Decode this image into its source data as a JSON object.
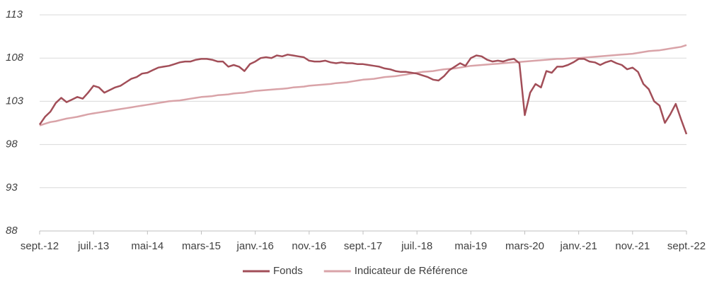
{
  "chart_data": {
    "type": "line",
    "x": [
      "2012-09",
      "2012-10",
      "2012-11",
      "2012-12",
      "2013-01",
      "2013-02",
      "2013-03",
      "2013-04",
      "2013-05",
      "2013-06",
      "2013-07",
      "2013-08",
      "2013-09",
      "2013-10",
      "2013-11",
      "2013-12",
      "2014-01",
      "2014-02",
      "2014-03",
      "2014-04",
      "2014-05",
      "2014-06",
      "2014-07",
      "2014-08",
      "2014-09",
      "2014-10",
      "2014-11",
      "2014-12",
      "2015-01",
      "2015-02",
      "2015-03",
      "2015-04",
      "2015-05",
      "2015-06",
      "2015-07",
      "2015-08",
      "2015-09",
      "2015-10",
      "2015-11",
      "2015-12",
      "2016-01",
      "2016-02",
      "2016-03",
      "2016-04",
      "2016-05",
      "2016-06",
      "2016-07",
      "2016-08",
      "2016-09",
      "2016-10",
      "2016-11",
      "2016-12",
      "2017-01",
      "2017-02",
      "2017-03",
      "2017-04",
      "2017-05",
      "2017-06",
      "2017-07",
      "2017-08",
      "2017-09",
      "2017-10",
      "2017-11",
      "2017-12",
      "2018-01",
      "2018-02",
      "2018-03",
      "2018-04",
      "2018-05",
      "2018-06",
      "2018-07",
      "2018-08",
      "2018-09",
      "2018-10",
      "2018-11",
      "2018-12",
      "2019-01",
      "2019-02",
      "2019-03",
      "2019-04",
      "2019-05",
      "2019-06",
      "2019-07",
      "2019-08",
      "2019-09",
      "2019-10",
      "2019-11",
      "2019-12",
      "2020-01",
      "2020-02",
      "2020-03",
      "2020-04",
      "2020-05",
      "2020-06",
      "2020-07",
      "2020-08",
      "2020-09",
      "2020-10",
      "2020-11",
      "2020-12",
      "2021-01",
      "2021-02",
      "2021-03",
      "2021-04",
      "2021-05",
      "2021-06",
      "2021-07",
      "2021-08",
      "2021-09",
      "2021-10",
      "2021-11",
      "2021-12",
      "2022-01",
      "2022-02",
      "2022-03",
      "2022-04",
      "2022-05",
      "2022-06",
      "2022-07",
      "2022-08",
      "2022-09"
    ],
    "series": [
      {
        "name": "Fonds",
        "color": "#a24e58",
        "values": [
          100.3,
          101.2,
          101.8,
          102.8,
          103.4,
          102.9,
          103.2,
          103.5,
          103.3,
          104.0,
          104.8,
          104.6,
          104.0,
          104.3,
          104.6,
          104.8,
          105.2,
          105.6,
          105.8,
          106.2,
          106.3,
          106.6,
          106.9,
          107.0,
          107.1,
          107.3,
          107.5,
          107.6,
          107.6,
          107.8,
          107.9,
          107.9,
          107.8,
          107.6,
          107.6,
          107.0,
          107.2,
          107.0,
          106.5,
          107.3,
          107.6,
          108.0,
          108.1,
          108.0,
          108.3,
          108.2,
          108.4,
          108.3,
          108.2,
          108.1,
          107.7,
          107.6,
          107.6,
          107.7,
          107.5,
          107.4,
          107.5,
          107.4,
          107.4,
          107.3,
          107.3,
          107.2,
          107.1,
          107.0,
          106.8,
          106.7,
          106.5,
          106.4,
          106.4,
          106.3,
          106.2,
          106.0,
          105.8,
          105.5,
          105.4,
          105.9,
          106.6,
          107.0,
          107.4,
          107.1,
          108.0,
          108.3,
          108.2,
          107.8,
          107.6,
          107.7,
          107.6,
          107.8,
          107.9,
          107.4,
          101.4,
          104.0,
          105.0,
          104.6,
          106.5,
          106.3,
          107.0,
          107.0,
          107.2,
          107.5,
          107.9,
          107.9,
          107.6,
          107.5,
          107.2,
          107.5,
          107.7,
          107.4,
          107.2,
          106.7,
          106.9,
          106.4,
          105.0,
          104.4,
          103.0,
          102.5,
          100.5,
          101.5,
          102.7,
          100.9,
          99.2
        ]
      },
      {
        "name": "Indicateur de Référence",
        "color": "#d9a3a8",
        "values": [
          100.2,
          100.4,
          100.6,
          100.7,
          100.85,
          101.0,
          101.1,
          101.2,
          101.35,
          101.5,
          101.6,
          101.7,
          101.8,
          101.9,
          102.0,
          102.1,
          102.2,
          102.3,
          102.4,
          102.5,
          102.6,
          102.7,
          102.8,
          102.9,
          103.0,
          103.05,
          103.1,
          103.2,
          103.3,
          103.4,
          103.5,
          103.55,
          103.6,
          103.7,
          103.75,
          103.8,
          103.9,
          103.95,
          104.0,
          104.1,
          104.2,
          104.25,
          104.3,
          104.35,
          104.4,
          104.45,
          104.5,
          104.6,
          104.65,
          104.7,
          104.8,
          104.85,
          104.9,
          104.95,
          105.0,
          105.1,
          105.15,
          105.2,
          105.3,
          105.4,
          105.5,
          105.55,
          105.6,
          105.7,
          105.8,
          105.85,
          105.9,
          106.0,
          106.1,
          106.2,
          106.3,
          106.4,
          106.45,
          106.5,
          106.6,
          106.7,
          106.75,
          106.8,
          106.9,
          107.0,
          107.1,
          107.15,
          107.2,
          107.25,
          107.3,
          107.35,
          107.4,
          107.45,
          107.5,
          107.55,
          107.6,
          107.65,
          107.7,
          107.75,
          107.8,
          107.85,
          107.9,
          107.9,
          107.95,
          108.0,
          108.0,
          108.05,
          108.1,
          108.15,
          108.2,
          108.25,
          108.3,
          108.35,
          108.4,
          108.45,
          108.5,
          108.6,
          108.7,
          108.8,
          108.85,
          108.9,
          109.0,
          109.1,
          109.2,
          109.3,
          109.5
        ]
      }
    ],
    "xlim": [
      "2012-09",
      "2022-09"
    ],
    "xticks": [
      {
        "value": "2012-09",
        "label": "sept.-12"
      },
      {
        "value": "2013-07",
        "label": "juil.-13"
      },
      {
        "value": "2014-05",
        "label": "mai-14"
      },
      {
        "value": "2015-03",
        "label": "mars-15"
      },
      {
        "value": "2016-01",
        "label": "janv.-16"
      },
      {
        "value": "2016-11",
        "label": "nov.-16"
      },
      {
        "value": "2017-09",
        "label": "sept.-17"
      },
      {
        "value": "2018-07",
        "label": "juil.-18"
      },
      {
        "value": "2019-05",
        "label": "mai-19"
      },
      {
        "value": "2020-03",
        "label": "mars-20"
      },
      {
        "value": "2021-01",
        "label": "janv.-21"
      },
      {
        "value": "2021-11",
        "label": "nov.-21"
      },
      {
        "value": "2022-09",
        "label": "sept.-22"
      }
    ],
    "ylim": [
      88,
      113
    ],
    "yticks": [
      88,
      93,
      98,
      103,
      108,
      113
    ],
    "grid": true,
    "legend": "bottom"
  }
}
